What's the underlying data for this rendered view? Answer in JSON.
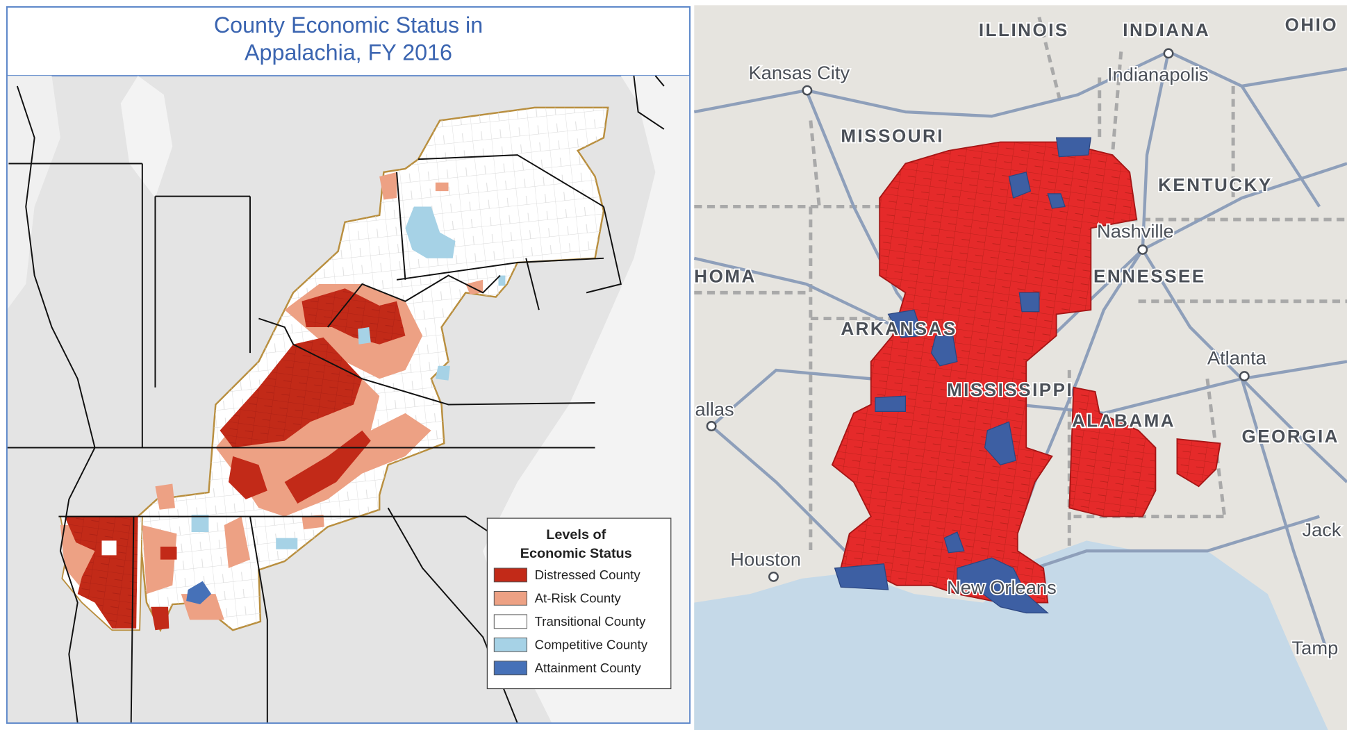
{
  "left_map": {
    "title": [
      "County Economic Status in",
      "Appalachia, FY 2016"
    ],
    "legend": {
      "title": [
        "Levels of",
        "Economic Status"
      ],
      "items": [
        {
          "label": "Distressed County",
          "color": "#c22a18"
        },
        {
          "label": "At-Risk County",
          "color": "#eda184"
        },
        {
          "label": "Transitional County",
          "color": "#ffffff"
        },
        {
          "label": "Competitive County",
          "color": "#a6d2e6"
        },
        {
          "label": "Attainment County",
          "color": "#4671b8"
        }
      ]
    }
  },
  "right_map": {
    "labels": [
      "ILLINOIS",
      "INDIANA",
      "OHIO",
      "Kansas City",
      "Indianapolis",
      "MISSOURI",
      "KENTUCKY",
      "Nashville",
      "HOMA",
      "ENNESSEE",
      "ARKANSAS",
      "Atlanta",
      "allas",
      "MISSISSIPPI",
      "ALABAMA",
      "GEORGIA",
      "Houston",
      "New Orleans",
      "Jack",
      "Tamp"
    ]
  }
}
